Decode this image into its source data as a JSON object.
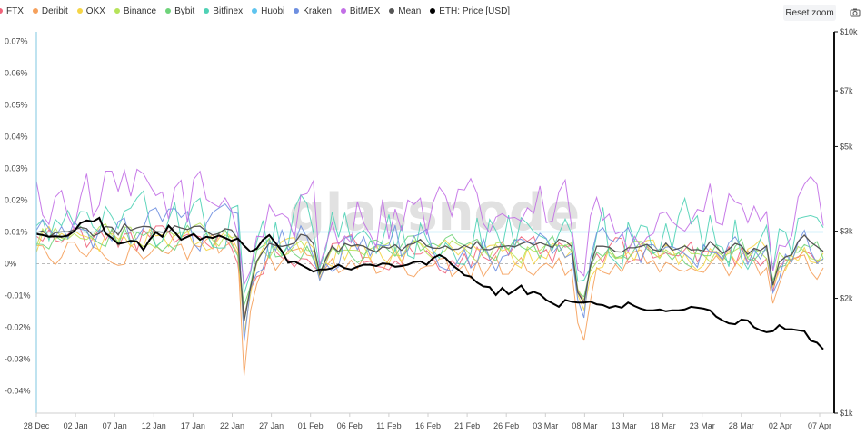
{
  "toolbar": {
    "reset_label": "Reset zoom",
    "camera_icon": "camera-icon"
  },
  "chart_data": {
    "type": "line",
    "title": "",
    "xlabel": "",
    "ylabel": "",
    "x_ticks": [
      "28 Dec",
      "02 Jan",
      "07 Jan",
      "12 Jan",
      "17 Jan",
      "22 Jan",
      "27 Jan",
      "01 Feb",
      "06 Feb",
      "11 Feb",
      "16 Feb",
      "21 Feb",
      "26 Feb",
      "03 Mar",
      "08 Mar",
      "13 Mar",
      "18 Mar",
      "23 Mar",
      "28 Mar",
      "02 Apr",
      "07 Apr"
    ],
    "y_ticks": [
      "0.07%",
      "0.06%",
      "0.05%",
      "0.04%",
      "0.03%",
      "0.02%",
      "0.01%",
      "0%",
      "-0.01%",
      "-0.02%",
      "-0.03%",
      "-0.04%"
    ],
    "y2_ticks": [
      "$10k",
      "$7k",
      "$5k",
      "$3k",
      "$2k",
      "$1k"
    ],
    "ylim": [
      -0.045,
      0.0735
    ],
    "y2_scale": "log",
    "y2lim": [
      1000,
      10000
    ],
    "grid": false,
    "legend": "top-left",
    "watermark": "glassnode",
    "series_info": [
      {
        "name": "FTX",
        "color": "#f0637a"
      },
      {
        "name": "Deribit",
        "color": "#f5a05b"
      },
      {
        "name": "OKX",
        "color": "#f5d547"
      },
      {
        "name": "Binance",
        "color": "#b6e35a"
      },
      {
        "name": "Bybit",
        "color": "#6ed37a"
      },
      {
        "name": "Bitfinex",
        "color": "#4fd1b5"
      },
      {
        "name": "Huobi",
        "color": "#5ec4ef"
      },
      {
        "name": "Kraken",
        "color": "#6e8fe0"
      },
      {
        "name": "BitMEX",
        "color": "#c26ee6"
      },
      {
        "name": "Mean",
        "color": "#555555"
      },
      {
        "name": "ETH: Price [USD]",
        "color": "#000000"
      }
    ],
    "eth_price": [
      2950,
      2930,
      2900,
      2910,
      2900,
      2920,
      3000,
      3150,
      3200,
      3180,
      3250,
      2960,
      2880,
      2780,
      2800,
      2830,
      2820,
      2680,
      2850,
      2980,
      2900,
      3100,
      2980,
      2850,
      2900,
      2950,
      2850,
      2900,
      2880,
      2920,
      2880,
      2830,
      2870,
      2750,
      2650,
      2700,
      2850,
      2930,
      2790,
      2660,
      2480,
      2500,
      2450,
      2400,
      2350,
      2380,
      2380,
      2400,
      2450,
      2400,
      2380,
      2420,
      2450,
      2450,
      2430,
      2470,
      2460,
      2420,
      2430,
      2450,
      2490,
      2500,
      2450,
      2550,
      2600,
      2550,
      2450,
      2380,
      2300,
      2280,
      2200,
      2150,
      2140,
      2040,
      2130,
      2050,
      2100,
      2160,
      2050,
      2080,
      2050,
      1980,
      1940,
      1900,
      1980,
      1960,
      1950,
      1950,
      1960,
      1930,
      1920,
      1890,
      1910,
      1890,
      1950,
      1910,
      1880,
      1860,
      1860,
      1870,
      1850,
      1860,
      1860,
      1870,
      1900,
      1890,
      1880,
      1860,
      1790,
      1750,
      1720,
      1710,
      1760,
      1750,
      1680,
      1650,
      1630,
      1640,
      1700,
      1660,
      1660,
      1650,
      1640,
      1550,
      1530,
      1470
    ]
  }
}
